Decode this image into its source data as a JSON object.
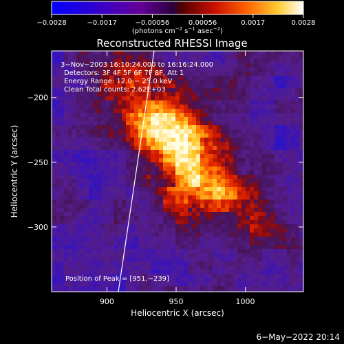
{
  "colorbar": {
    "min_label": "−0.0028",
    "ticks": [
      "−0.0028",
      "−0.0017",
      "−0.00056",
      "0.00056",
      "0.0017",
      "0.0028"
    ],
    "units": "(photons cm",
    "units_exp1": "−2",
    "units_mid": " s",
    "units_exp2": "−1",
    "units_end": " asec",
    "units_exp3": "−2",
    "units_close": ")"
  },
  "plot": {
    "title": "Reconstructed RHESSI Image",
    "info_lines": [
      "3−Nov−2003 16:10:24.000 to 16:16:24.000",
      "Detectors: 3F 4F 5F 6F 7F 8F, Att 1",
      "Energy Range: 12.0 − 25.0 keV",
      "Clean     Total counts: 2.62E+03"
    ],
    "peak_label": "Position of Peak = [951,−239]",
    "x_axis_title": "Heliocentric X (arcsec)",
    "y_axis_title": "Heliocentric Y (arcsec)",
    "x_ticks": [
      {
        "value": 900,
        "label": "900"
      },
      {
        "value": 950,
        "label": "950"
      },
      {
        "value": 1000,
        "label": "1000"
      }
    ],
    "y_ticks": [
      {
        "value": -200,
        "label": "−200"
      },
      {
        "value": -250,
        "label": "−250"
      },
      {
        "value": -300,
        "label": "−300"
      }
    ],
    "x_range": [
      860,
      1042
    ],
    "y_range": [
      -350,
      -164
    ],
    "peak": [
      951,
      -239
    ]
  },
  "footer": {
    "date": "6−May−2022 20:14"
  },
  "colors": {
    "background": "#000000",
    "text": "#ffffff"
  }
}
